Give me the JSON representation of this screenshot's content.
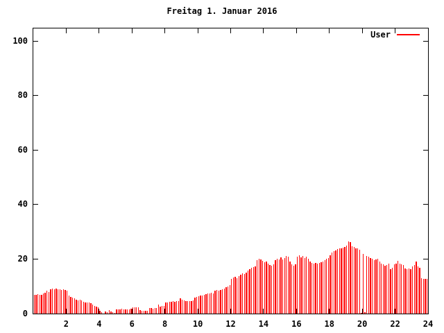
{
  "title": "Freitag 1. Januar 2016",
  "legend": {
    "label": "User",
    "color": "#ff0000"
  },
  "colors": {
    "bar": "#ff0000",
    "axis": "#000000",
    "background": "#ffffff",
    "text": "#000000"
  },
  "chart_data": {
    "type": "bar",
    "title": "Freitag 1. Januar 2016",
    "xlabel": "",
    "ylabel": "",
    "xlim": [
      0,
      24
    ],
    "ylim": [
      0,
      105
    ],
    "x_ticks": [
      2,
      4,
      6,
      8,
      10,
      12,
      14,
      16,
      18,
      20,
      22,
      24
    ],
    "y_ticks": [
      0,
      20,
      40,
      60,
      80,
      100
    ],
    "grid": false,
    "legend_position": "top-right",
    "points_per_hour": 9,
    "series": [
      {
        "name": "User",
        "color": "#ff0000",
        "values": [
          7.0,
          6.8,
          7.2,
          7.0,
          6.9,
          7.4,
          7.6,
          8.4,
          7.8,
          8.8,
          9.2,
          9.0,
          9.2,
          8.9,
          9.0,
          8.7,
          8.9,
          8.6,
          8.4,
          6.6,
          6.2,
          5.8,
          5.5,
          5.2,
          4.9,
          5.1,
          4.8,
          4.3,
          4.1,
          4.0,
          4.2,
          3.8,
          3.3,
          2.8,
          2.5,
          2.2,
          1.0,
          0.6,
          0.0,
          0.8,
          0.6,
          1.4,
          0.8,
          0.6,
          0.3,
          1.5,
          1.6,
          1.6,
          1.7,
          1.6,
          1.6,
          1.5,
          1.6,
          1.7,
          2.3,
          2.4,
          2.2,
          2.3,
          1.2,
          1.0,
          0.9,
          1.0,
          1.1,
          2.0,
          2.1,
          1.9,
          2.0,
          2.1,
          3.4,
          2.5,
          2.7,
          2.9,
          4.1,
          4.2,
          4.4,
          4.3,
          4.5,
          4.4,
          4.6,
          4.7,
          5.6,
          5.0,
          4.8,
          4.6,
          4.5,
          4.7,
          4.6,
          4.8,
          5.9,
          6.1,
          6.3,
          6.5,
          6.7,
          7.0,
          7.2,
          7.4,
          7.5,
          7.6,
          7.5,
          8.4,
          8.6,
          8.5,
          8.7,
          8.8,
          9.2,
          9.6,
          10.0,
          10.4,
          12.6,
          13.2,
          13.5,
          13.0,
          13.8,
          14.2,
          14.7,
          14.4,
          15.1,
          15.8,
          16.4,
          16.8,
          17.0,
          17.3,
          19.6,
          20.2,
          19.8,
          19.4,
          18.8,
          19.0,
          18.4,
          17.8,
          17.5,
          18.1,
          19.6,
          20.2,
          19.8,
          20.6,
          19.8,
          20.4,
          21.2,
          20.8,
          19.0,
          18.1,
          17.6,
          18.0,
          20.8,
          21.4,
          20.6,
          21.0,
          20.4,
          20.8,
          20.2,
          19.0,
          18.5,
          18.3,
          18.6,
          18.2,
          18.5,
          18.8,
          19.2,
          19.6,
          20.0,
          20.4,
          21.5,
          22.3,
          22.8,
          23.2,
          23.6,
          24.0,
          23.8,
          24.2,
          24.5,
          25.0,
          26.5,
          26.2,
          24.8,
          24.4,
          24.0,
          23.8,
          23.4,
          0.3,
          21.8,
          0.4,
          21.2,
          20.8,
          20.3,
          20.0,
          19.5,
          19.8,
          20.2,
          19.0,
          18.4,
          18.0,
          17.6,
          17.9,
          18.2,
          16.4,
          16.8,
          18.1,
          18.2,
          19.4,
          18.4,
          18.0,
          17.7,
          16.5,
          16.2,
          16.6,
          16.4,
          17.4,
          17.8,
          19.1,
          17.2,
          16.9,
          12.9,
          12.6,
          12.7,
          12.6
        ]
      }
    ]
  }
}
